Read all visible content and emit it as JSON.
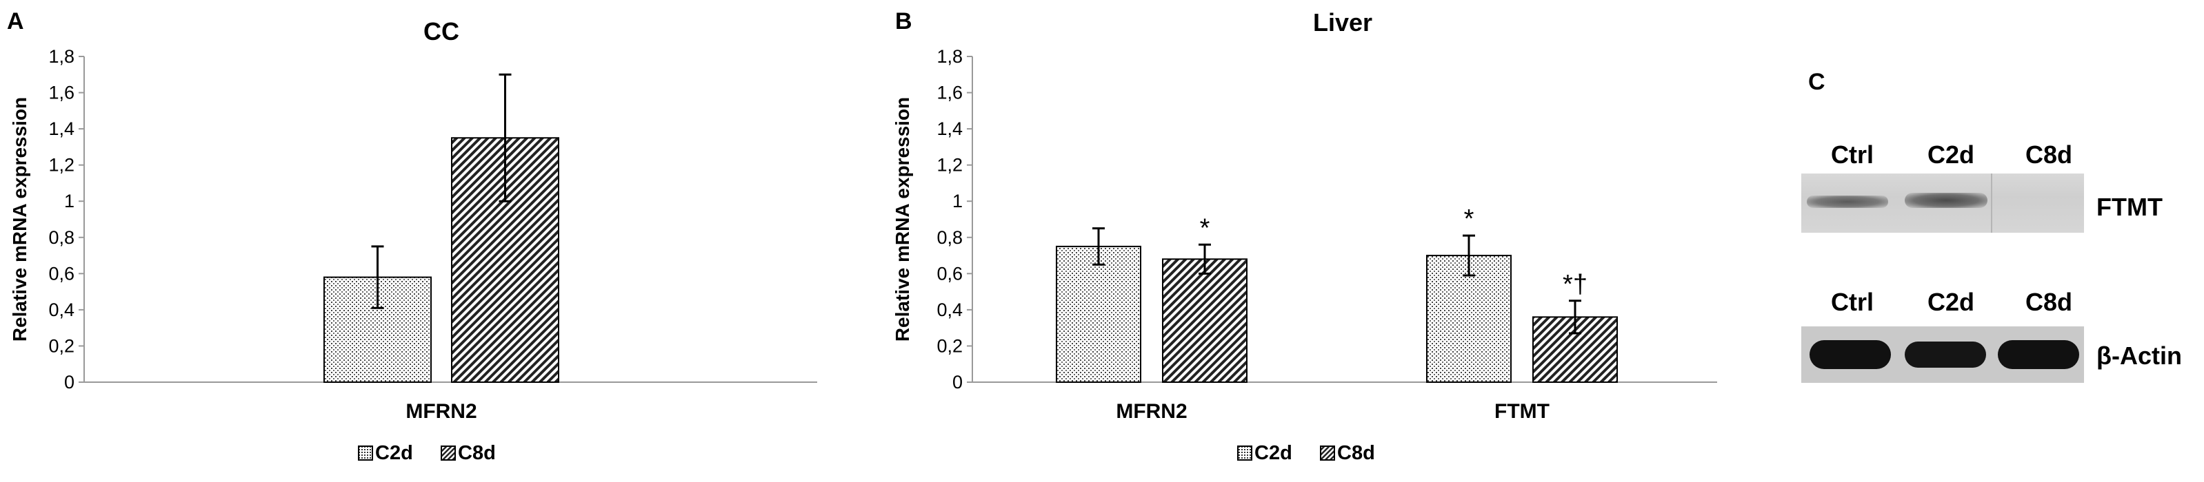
{
  "panels": {
    "a_letter": "A",
    "b_letter": "B",
    "c_letter": "C"
  },
  "chart_data": [
    {
      "type": "bar",
      "title": "CC",
      "ylabel": "Relative mRNA expression",
      "xlabel": "",
      "ylim": [
        0,
        1.8
      ],
      "yticks": [
        "0",
        "0,2",
        "0,4",
        "0,6",
        "0,8",
        "1",
        "1,2",
        "1,4",
        "1,6",
        "1,8"
      ],
      "categories": [
        "MFRN2"
      ],
      "series": [
        {
          "name": "C2d",
          "values": [
            0.58
          ],
          "errors": [
            0.17
          ],
          "pattern": "dots"
        },
        {
          "name": "C8d",
          "values": [
            1.35
          ],
          "errors": [
            0.35
          ],
          "pattern": "diagonal"
        }
      ],
      "annotations": [],
      "legend": "bottom-center",
      "grid": false
    },
    {
      "type": "bar",
      "title": "Liver",
      "ylabel": "Relative mRNA expression",
      "xlabel": "",
      "ylim": [
        0,
        1.8
      ],
      "yticks": [
        "0",
        "0,2",
        "0,4",
        "0,6",
        "0,8",
        "1",
        "1,2",
        "1,4",
        "1,6",
        "1,8"
      ],
      "categories": [
        "MFRN2",
        "FTMT"
      ],
      "series": [
        {
          "name": "C2d",
          "values": [
            0.75,
            0.7
          ],
          "errors": [
            0.1,
            0.11
          ],
          "pattern": "dots"
        },
        {
          "name": "C8d",
          "values": [
            0.68,
            0.36
          ],
          "errors": [
            0.08,
            0.09
          ],
          "pattern": "diagonal"
        }
      ],
      "annotations": [
        {
          "category": "MFRN2",
          "series": "C8d",
          "text": "*"
        },
        {
          "category": "FTMT",
          "series": "C2d",
          "text": "*"
        },
        {
          "category": "FTMT",
          "series": "C8d",
          "text": "*†"
        }
      ],
      "legend": "bottom-center",
      "grid": false
    }
  ],
  "blot": {
    "ftmt_lanes": [
      "Ctrl",
      "C2d",
      "C8d"
    ],
    "ftmt_label": "FTMT",
    "actin_lanes": [
      "Ctrl",
      "C2d",
      "C8d"
    ],
    "actin_label": "β-Actin"
  }
}
